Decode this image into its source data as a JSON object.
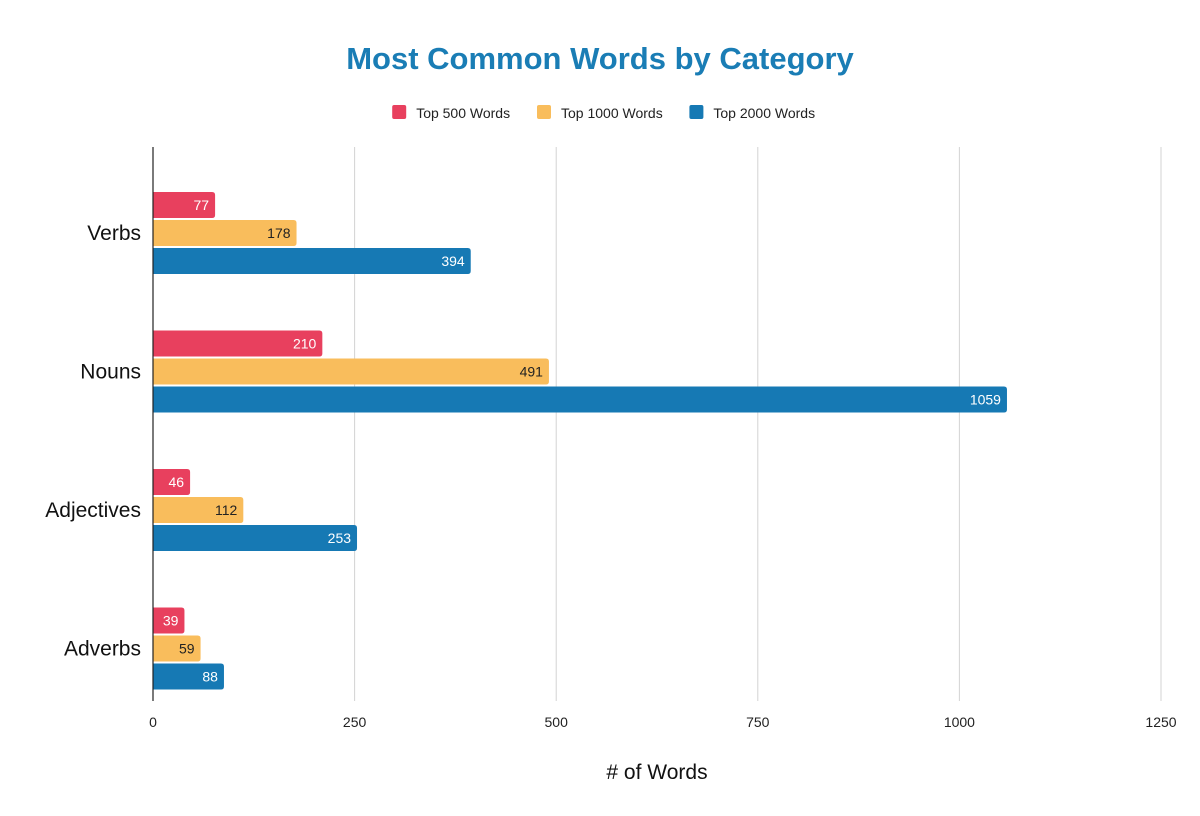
{
  "chart_data": {
    "type": "bar",
    "orientation": "horizontal",
    "title": "Most Common Words by Category",
    "xlabel": "# of Words",
    "ylabel": "",
    "categories": [
      "Verbs",
      "Nouns",
      "Adjectives",
      "Adverbs"
    ],
    "series": [
      {
        "name": "Top 500 Words",
        "color": "#e8405e",
        "label_color": "#ffffff",
        "values": [
          77,
          210,
          46,
          39
        ]
      },
      {
        "name": "Top 1000 Words",
        "color": "#f9bd5c",
        "label_color": "#222222",
        "values": [
          178,
          491,
          112,
          59
        ]
      },
      {
        "name": "Top 2000 Words",
        "color": "#1679b4",
        "label_color": "#ffffff",
        "values": [
          394,
          1059,
          253,
          88
        ]
      }
    ],
    "xlim": [
      0,
      1250
    ],
    "xticks": [
      0,
      250,
      500,
      750,
      1000,
      1250
    ],
    "grid": "vertical",
    "legend_position": "top-center",
    "title_color": "#1a7db5"
  }
}
